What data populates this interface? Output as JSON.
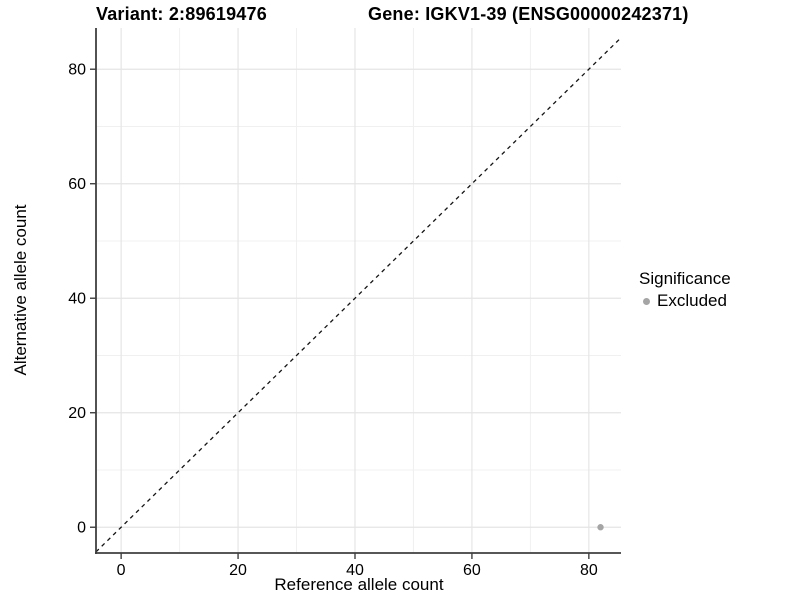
{
  "chart_data": {
    "type": "scatter",
    "title_left": "Variant: 2:89619476",
    "title_right": "Gene: IGKV1-39 (ENSG00000242371)",
    "xlabel": "Reference allele count",
    "ylabel": "Alternative allele count",
    "xlim": [
      -4.3,
      85.5
    ],
    "ylim": [
      -4.5,
      87.2
    ],
    "x_ticks": [
      0,
      20,
      40,
      60,
      80
    ],
    "y_ticks": [
      0,
      20,
      40,
      60,
      80
    ],
    "x_minor_gridlines": [
      10,
      30,
      50,
      70
    ],
    "y_minor_gridlines": [
      10,
      30,
      50,
      70
    ],
    "grid": true,
    "identity_line": {
      "style": "dashed",
      "slope": 1,
      "intercept": 0
    },
    "series": [
      {
        "name": "Excluded",
        "color": "#a5a5a5",
        "points": [
          {
            "x": 82,
            "y": 0
          }
        ]
      }
    ],
    "legend": {
      "title": "Significance",
      "position": "right",
      "items": [
        {
          "label": "Excluded",
          "color": "#a5a5a5"
        }
      ]
    },
    "colors": {
      "background": "#ffffff",
      "major_grid": "#e5e5e5",
      "minor_grid": "#f0f0f0",
      "axis": "#3f3f3f",
      "identity_line": "#141414",
      "tick_label": "#000000"
    }
  }
}
